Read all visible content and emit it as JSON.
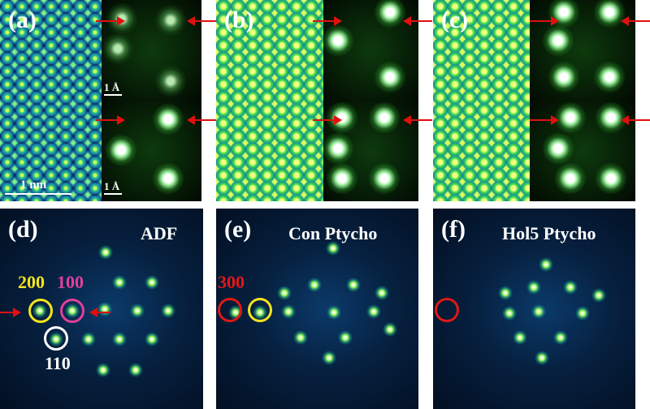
{
  "panels": {
    "a": {
      "label": "(a)",
      "scale_main": "1 nm",
      "scale_inset_top": "1 Å",
      "scale_inset_bottom": "1 Å"
    },
    "b": {
      "label": "(b)"
    },
    "c": {
      "label": "(c)"
    },
    "d": {
      "label": "(d)",
      "title": "ADF",
      "index_200": "200",
      "index_100": "100",
      "index_110": "110"
    },
    "e": {
      "label": "(e)",
      "title": "Con Ptycho",
      "index_300": "300"
    },
    "f": {
      "label": "(f)",
      "title": "Hol5 Ptycho"
    }
  },
  "colors": {
    "arrow": "#e01010",
    "circle_200": "#f4e41c",
    "circle_100": "#e0409a",
    "circle_110": "#ffffff",
    "circle_300": "#e01818",
    "index_200": "#f4e41c",
    "index_100": "#e0409a",
    "index_300": "#e01818"
  }
}
